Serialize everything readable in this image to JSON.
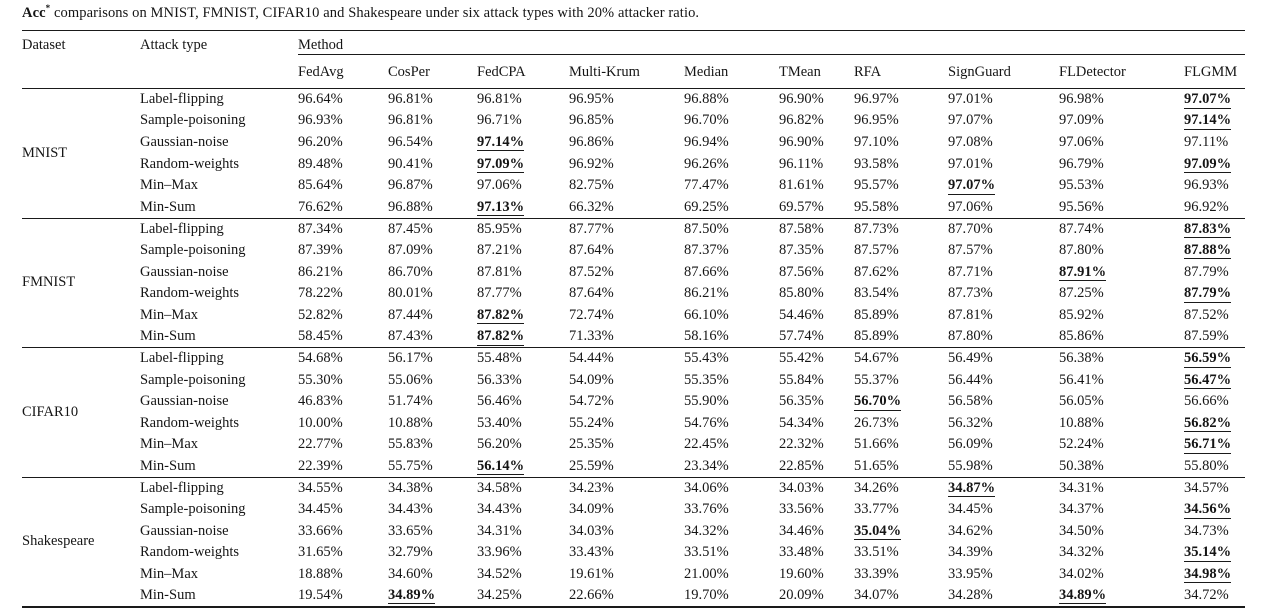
{
  "caption": {
    "metric": "Acc",
    "sup": "*",
    "rest": " comparisons on MNIST, FMNIST, CIFAR10 and Shakespeare under six attack types with 20% attacker ratio."
  },
  "table": {
    "headers": {
      "dataset": "Dataset",
      "attack_type": "Attack type",
      "method_group": "Method",
      "methods": [
        "FedAvg",
        "CosPer",
        "FedCPA",
        "Multi-Krum",
        "Median",
        "TMean",
        "RFA",
        "SignGuard",
        "FLDetector",
        "FLGMM"
      ]
    },
    "sections": [
      {
        "dataset": "MNIST",
        "rows": [
          {
            "attack": "Label-flipping",
            "values": [
              "96.64%",
              "96.81%",
              "96.81%",
              "96.95%",
              "96.88%",
              "96.90%",
              "96.97%",
              "97.01%",
              "96.98%",
              "97.07%"
            ],
            "best": [
              9
            ]
          },
          {
            "attack": "Sample-poisoning",
            "values": [
              "96.93%",
              "96.81%",
              "96.71%",
              "96.85%",
              "96.70%",
              "96.82%",
              "96.95%",
              "97.07%",
              "97.09%",
              "97.14%"
            ],
            "best": [
              9
            ]
          },
          {
            "attack": "Gaussian-noise",
            "values": [
              "96.20%",
              "96.54%",
              "97.14%",
              "96.86%",
              "96.94%",
              "96.90%",
              "97.10%",
              "97.08%",
              "97.06%",
              "97.11%"
            ],
            "best": [
              2
            ]
          },
          {
            "attack": "Random-weights",
            "values": [
              "89.48%",
              "90.41%",
              "97.09%",
              "96.92%",
              "96.26%",
              "96.11%",
              "93.58%",
              "97.01%",
              "96.79%",
              "97.09%"
            ],
            "best": [
              2,
              9
            ]
          },
          {
            "attack": "Min–Max",
            "values": [
              "85.64%",
              "96.87%",
              "97.06%",
              "82.75%",
              "77.47%",
              "81.61%",
              "95.57%",
              "97.07%",
              "95.53%",
              "96.93%"
            ],
            "best": [
              7
            ]
          },
          {
            "attack": "Min-Sum",
            "values": [
              "76.62%",
              "96.88%",
              "97.13%",
              "66.32%",
              "69.25%",
              "69.57%",
              "95.58%",
              "97.06%",
              "95.56%",
              "96.92%"
            ],
            "best": [
              2
            ]
          }
        ]
      },
      {
        "dataset": "FMNIST",
        "rows": [
          {
            "attack": "Label-flipping",
            "values": [
              "87.34%",
              "87.45%",
              "85.95%",
              "87.77%",
              "87.50%",
              "87.58%",
              "87.73%",
              "87.70%",
              "87.74%",
              "87.83%"
            ],
            "best": [
              9
            ]
          },
          {
            "attack": "Sample-poisoning",
            "values": [
              "87.39%",
              "87.09%",
              "87.21%",
              "87.64%",
              "87.37%",
              "87.35%",
              "87.57%",
              "87.57%",
              "87.80%",
              "87.88%"
            ],
            "best": [
              9
            ]
          },
          {
            "attack": "Gaussian-noise",
            "values": [
              "86.21%",
              "86.70%",
              "87.81%",
              "87.52%",
              "87.66%",
              "87.56%",
              "87.62%",
              "87.71%",
              "87.91%",
              "87.79%"
            ],
            "best": [
              8
            ]
          },
          {
            "attack": "Random-weights",
            "values": [
              "78.22%",
              "80.01%",
              "87.77%",
              "87.64%",
              "86.21%",
              "85.80%",
              "83.54%",
              "87.73%",
              "87.25%",
              "87.79%"
            ],
            "best": [
              9
            ]
          },
          {
            "attack": "Min–Max",
            "values": [
              "52.82%",
              "87.44%",
              "87.82%",
              "72.74%",
              "66.10%",
              "54.46%",
              "85.89%",
              "87.81%",
              "85.92%",
              "87.52%"
            ],
            "best": [
              2
            ]
          },
          {
            "attack": "Min-Sum",
            "values": [
              "58.45%",
              "87.43%",
              "87.82%",
              "71.33%",
              "58.16%",
              "57.74%",
              "85.89%",
              "87.80%",
              "85.86%",
              "87.59%"
            ],
            "best": [
              2
            ]
          }
        ]
      },
      {
        "dataset": "CIFAR10",
        "rows": [
          {
            "attack": "Label-flipping",
            "values": [
              "54.68%",
              "56.17%",
              "55.48%",
              "54.44%",
              "55.43%",
              "55.42%",
              "54.67%",
              "56.49%",
              "56.38%",
              "56.59%"
            ],
            "best": [
              9
            ]
          },
          {
            "attack": "Sample-poisoning",
            "values": [
              "55.30%",
              "55.06%",
              "56.33%",
              "54.09%",
              "55.35%",
              "55.84%",
              "55.37%",
              "56.44%",
              "56.41%",
              "56.47%"
            ],
            "best": [
              9
            ]
          },
          {
            "attack": "Gaussian-noise",
            "values": [
              "46.83%",
              "51.74%",
              "56.46%",
              "54.72%",
              "55.90%",
              "56.35%",
              "56.70%",
              "56.58%",
              "56.05%",
              "56.66%"
            ],
            "best": [
              6
            ]
          },
          {
            "attack": "Random-weights",
            "values": [
              "10.00%",
              "10.88%",
              "53.40%",
              "55.24%",
              "54.76%",
              "54.34%",
              "26.73%",
              "56.32%",
              "10.88%",
              "56.82%"
            ],
            "best": [
              9
            ]
          },
          {
            "attack": "Min–Max",
            "values": [
              "22.77%",
              "55.83%",
              "56.20%",
              "25.35%",
              "22.45%",
              "22.32%",
              "51.66%",
              "56.09%",
              "52.24%",
              "56.71%"
            ],
            "best": [
              9
            ]
          },
          {
            "attack": "Min-Sum",
            "values": [
              "22.39%",
              "55.75%",
              "56.14%",
              "25.59%",
              "23.34%",
              "22.85%",
              "51.65%",
              "55.98%",
              "50.38%",
              "55.80%"
            ],
            "best": [
              2
            ]
          }
        ]
      },
      {
        "dataset": "Shakespeare",
        "rows": [
          {
            "attack": "Label-flipping",
            "values": [
              "34.55%",
              "34.38%",
              "34.58%",
              "34.23%",
              "34.06%",
              "34.03%",
              "34.26%",
              "34.87%",
              "34.31%",
              "34.57%"
            ],
            "best": [
              7
            ]
          },
          {
            "attack": "Sample-poisoning",
            "values": [
              "34.45%",
              "34.43%",
              "34.43%",
              "34.09%",
              "33.76%",
              "33.56%",
              "33.77%",
              "34.45%",
              "34.37%",
              "34.56%"
            ],
            "best": [
              9
            ]
          },
          {
            "attack": "Gaussian-noise",
            "values": [
              "33.66%",
              "33.65%",
              "34.31%",
              "34.03%",
              "34.32%",
              "34.46%",
              "35.04%",
              "34.62%",
              "34.50%",
              "34.73%"
            ],
            "best": [
              6
            ]
          },
          {
            "attack": "Random-weights",
            "values": [
              "31.65%",
              "32.79%",
              "33.96%",
              "33.43%",
              "33.51%",
              "33.48%",
              "33.51%",
              "34.39%",
              "34.32%",
              "35.14%"
            ],
            "best": [
              9
            ]
          },
          {
            "attack": "Min–Max",
            "values": [
              "18.88%",
              "34.60%",
              "34.52%",
              "19.61%",
              "21.00%",
              "19.60%",
              "33.39%",
              "33.95%",
              "34.02%",
              "34.98%"
            ],
            "best": [
              9
            ]
          },
          {
            "attack": "Min-Sum",
            "values": [
              "19.54%",
              "34.89%",
              "34.25%",
              "22.66%",
              "19.70%",
              "20.09%",
              "34.07%",
              "34.28%",
              "34.89%",
              "34.72%"
            ],
            "best": [
              1,
              8
            ]
          }
        ]
      }
    ]
  }
}
